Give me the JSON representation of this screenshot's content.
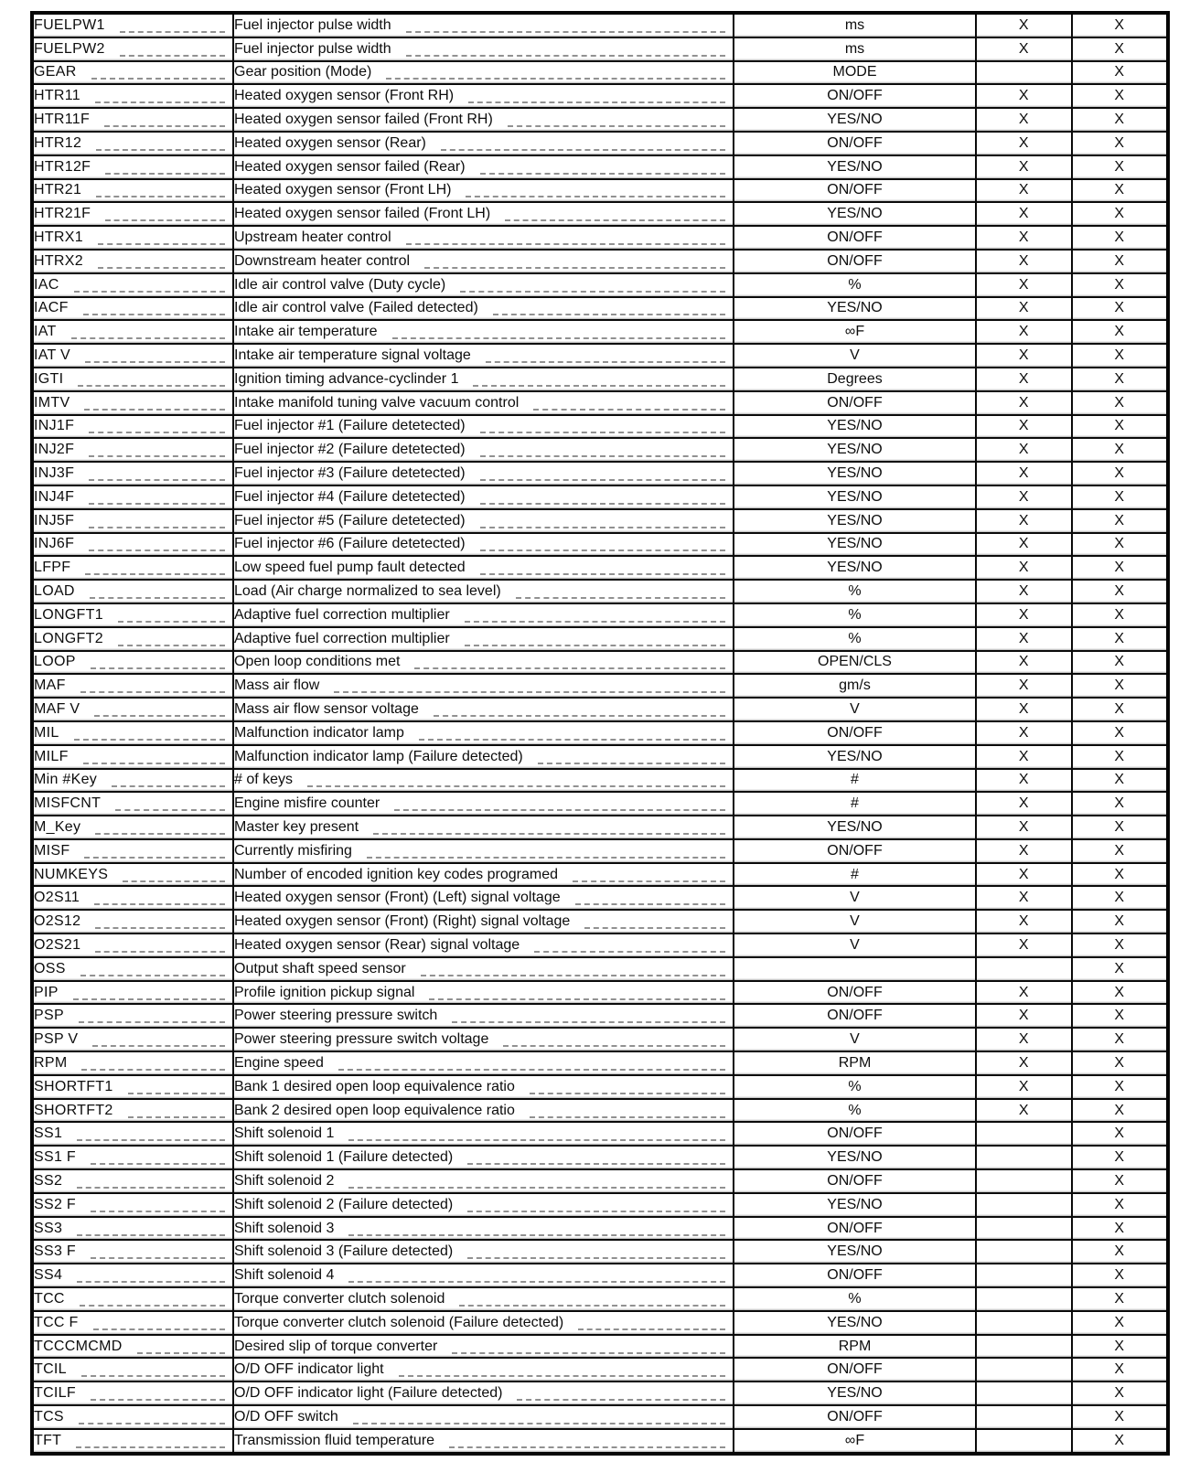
{
  "document": {
    "type": "scanned-parameter-table-page",
    "paper_color": "#ffffff",
    "ink_color": "#0d0d0d",
    "mark_glyph": "X"
  },
  "table": {
    "column_keys": [
      "param",
      "description",
      "units",
      "x1",
      "x2"
    ],
    "rows": [
      [
        "FUELPW1",
        "Fuel injector pulse width",
        "ms",
        "X",
        "X"
      ],
      [
        "FUELPW2",
        "Fuel injector pulse width",
        "ms",
        "X",
        "X"
      ],
      [
        "GEAR",
        "Gear position (Mode)",
        "MODE",
        "",
        "X"
      ],
      [
        "HTR11",
        "Heated oxygen sensor (Front RH)",
        "ON/OFF",
        "X",
        "X"
      ],
      [
        "HTR11F",
        "Heated oxygen sensor failed (Front RH)",
        "YES/NO",
        "X",
        "X"
      ],
      [
        "HTR12",
        "Heated oxygen sensor (Rear)",
        "ON/OFF",
        "X",
        "X"
      ],
      [
        "HTR12F",
        "Heated oxygen sensor failed (Rear)",
        "YES/NO",
        "X",
        "X"
      ],
      [
        "HTR21",
        "Heated oxygen sensor (Front LH)",
        "ON/OFF",
        "X",
        "X"
      ],
      [
        "HTR21F",
        "Heated oxygen sensor failed (Front LH)",
        "YES/NO",
        "X",
        "X"
      ],
      [
        "HTRX1",
        "Upstream heater control",
        "ON/OFF",
        "X",
        "X"
      ],
      [
        "HTRX2",
        "Downstream heater control",
        "ON/OFF",
        "X",
        "X"
      ],
      [
        "IAC",
        "Idle air control valve (Duty cycle)",
        "%",
        "X",
        "X"
      ],
      [
        "IACF",
        "Idle air control valve (Failed detected)",
        "YES/NO",
        "X",
        "X"
      ],
      [
        "IAT",
        "Intake air temperature",
        "∞F",
        "X",
        "X"
      ],
      [
        "IAT V",
        "Intake air temperature signal voltage",
        "V",
        "X",
        "X"
      ],
      [
        "IGTI",
        "Ignition timing advance-cyclinder 1",
        "Degrees",
        "X",
        "X"
      ],
      [
        "IMTV",
        "Intake manifold tuning valve vacuum control",
        "ON/OFF",
        "X",
        "X"
      ],
      [
        "INJ1F",
        "Fuel injector #1 (Failure detetected)",
        "YES/NO",
        "X",
        "X"
      ],
      [
        "INJ2F",
        "Fuel injector #2 (Failure detetected)",
        "YES/NO",
        "X",
        "X"
      ],
      [
        "INJ3F",
        "Fuel injector #3 (Failure detetected)",
        "YES/NO",
        "X",
        "X"
      ],
      [
        "INJ4F",
        "Fuel injector #4 (Failure detetected)",
        "YES/NO",
        "X",
        "X"
      ],
      [
        "INJ5F",
        "Fuel injector #5 (Failure detetected)",
        "YES/NO",
        "X",
        "X"
      ],
      [
        "INJ6F",
        "Fuel injector #6 (Failure detetected)",
        "YES/NO",
        "X",
        "X"
      ],
      [
        "LFPF",
        "Low speed fuel pump fault detected",
        "YES/NO",
        "X",
        "X"
      ],
      [
        "LOAD",
        "Load (Air charge normalized to sea level)",
        "%",
        "X",
        "X"
      ],
      [
        "LONGFT1",
        "Adaptive fuel correction multiplier",
        "%",
        "X",
        "X"
      ],
      [
        "LONGFT2",
        "Adaptive fuel correction multiplier",
        "%",
        "X",
        "X"
      ],
      [
        "LOOP",
        "Open loop conditions met",
        "OPEN/CLS",
        "X",
        "X"
      ],
      [
        "MAF",
        "Mass air flow",
        "gm/s",
        "X",
        "X"
      ],
      [
        "MAF V",
        "Mass air flow sensor voltage",
        "V",
        "X",
        "X"
      ],
      [
        "MIL",
        "Malfunction indicator lamp",
        "ON/OFF",
        "X",
        "X"
      ],
      [
        "MILF",
        "Malfunction indicator lamp (Failure detected)",
        "YES/NO",
        "X",
        "X"
      ],
      [
        "Min #Key",
        "# of keys",
        "#",
        "X",
        "X"
      ],
      [
        "MISFCNT",
        "Engine misfire counter",
        "#",
        "X",
        "X"
      ],
      [
        "M_Key",
        "Master key present",
        "YES/NO",
        "X",
        "X"
      ],
      [
        "MISF",
        "Currently misfiring",
        "ON/OFF",
        "X",
        "X"
      ],
      [
        "NUMKEYS",
        "Number of encoded ignition key codes programed",
        "#",
        "X",
        "X"
      ],
      [
        "O2S11",
        "Heated oxygen sensor (Front) (Left) signal voltage",
        "V",
        "X",
        "X"
      ],
      [
        "O2S12",
        "Heated oxygen sensor (Front) (Right) signal voltage",
        "V",
        "X",
        "X"
      ],
      [
        "O2S21",
        "Heated oxygen sensor (Rear) signal voltage",
        "V",
        "X",
        "X"
      ],
      [
        "OSS",
        "Output shaft speed sensor",
        "",
        "",
        "X"
      ],
      [
        "PIP",
        "Profile ignition pickup signal",
        "ON/OFF",
        "X",
        "X"
      ],
      [
        "PSP",
        "Power steering pressure switch",
        "ON/OFF",
        "X",
        "X"
      ],
      [
        "PSP V",
        "Power steering pressure switch voltage",
        "V",
        "X",
        "X"
      ],
      [
        "RPM",
        "Engine speed",
        "RPM",
        "X",
        "X"
      ],
      [
        "SHORTFT1",
        "Bank 1 desired open loop equivalence ratio",
        "%",
        "X",
        "X"
      ],
      [
        "SHORTFT2",
        "Bank 2 desired open loop equivalence ratio",
        "%",
        "X",
        "X"
      ],
      [
        "SS1",
        "Shift solenoid 1",
        "ON/OFF",
        "",
        "X"
      ],
      [
        "SS1 F",
        "Shift solenoid 1 (Failure detected)",
        "YES/NO",
        "",
        "X"
      ],
      [
        "SS2",
        "Shift solenoid 2",
        "ON/OFF",
        "",
        "X"
      ],
      [
        "SS2 F",
        "Shift solenoid 2 (Failure detected)",
        "YES/NO",
        "",
        "X"
      ],
      [
        "SS3",
        "Shift solenoid 3",
        "ON/OFF",
        "",
        "X"
      ],
      [
        "SS3 F",
        "Shift solenoid 3 (Failure detected)",
        "YES/NO",
        "",
        "X"
      ],
      [
        "SS4",
        "Shift solenoid 4",
        "ON/OFF",
        "",
        "X"
      ],
      [
        "TCC",
        "Torque converter clutch solenoid",
        "%",
        "",
        "X"
      ],
      [
        "TCC F",
        "Torque converter clutch solenoid (Failure detected)",
        "YES/NO",
        "",
        "X"
      ],
      [
        "TCCCMCMD",
        "Desired slip of torque converter",
        "RPM",
        "",
        "X"
      ],
      [
        "TCIL",
        "O/D OFF indicator light",
        "ON/OFF",
        "",
        "X"
      ],
      [
        "TCILF",
        "O/D OFF indicator light (Failure detected)",
        "YES/NO",
        "",
        "X"
      ],
      [
        "TCS",
        "O/D OFF switch",
        "ON/OFF",
        "",
        "X"
      ],
      [
        "TFT",
        "Transmission fluid temperature",
        "∞F",
        "",
        "X"
      ]
    ]
  }
}
